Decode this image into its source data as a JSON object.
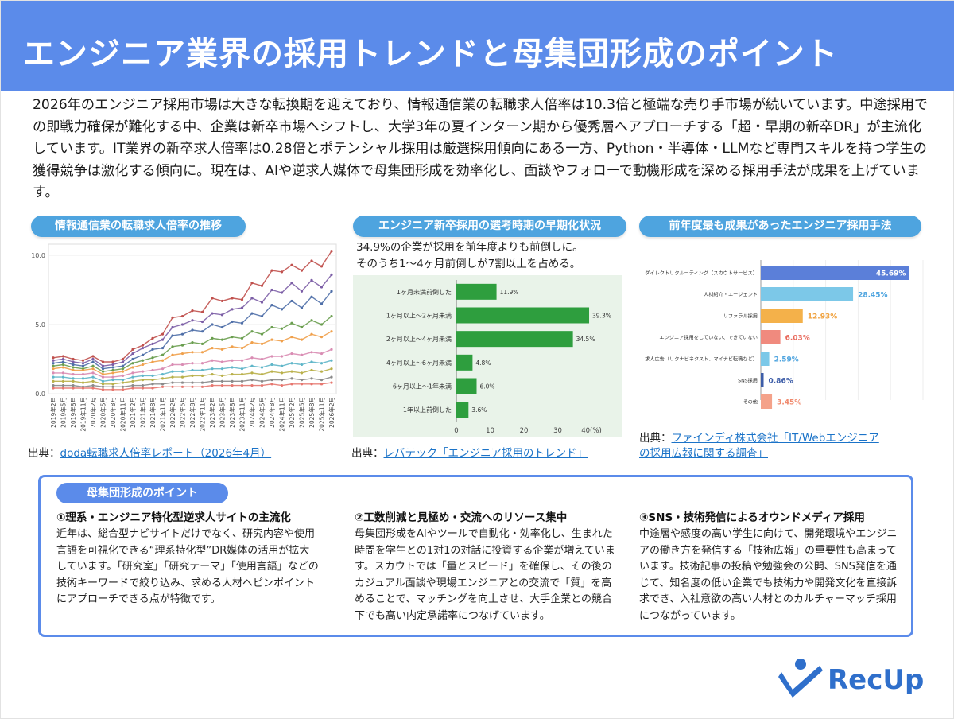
{
  "header": {
    "title": "エンジニア業界の採用トレンドと母集団形成のポイント"
  },
  "intro": "2026年のエンジニア採用市場は大きな転換期を迎えており、情報通信業の転職求人倍率は10.3倍と極端な売り手市場が続いています。中途採用での即戦力確保が難化する中、企業は新卒市場へシフトし、大学3年の夏インターン期から優秀層へアプローチする「超・早期の新卒DR」が主流化しています。IT業界の新卒求人倍率は0.28倍とポテンシャル採用は厳選採用傾向にある一方、Python・半導体・LLMなど専門スキルを持つ学生の獲得競争は激化する傾向に。現在は、AIや逆求人媒体で母集団形成を効率化し、面談やフォローで動機形成を深める採用手法が成果を上げています。",
  "charts": {
    "left": {
      "heading": "情報通信業の転職求人倍率の推移",
      "source_prefix": "出典：",
      "source_link": "doda転職求人倍率レポート（2026年4月）"
    },
    "middle": {
      "heading": "エンジニア新卒採用の選考時期の早期化状況",
      "subtext_1": "34.9%の企業が採用を前年度よりも前倒しに。",
      "subtext_2": "そのうち1〜4ヶ月前倒しが7割以上を占める。",
      "source_prefix": "出典：",
      "source_link": "レバテック「エンジニア採用のトレンド」"
    },
    "right": {
      "heading": "前年度最も成果があったエンジニア採用手法",
      "source_prefix": "出典：",
      "source_link_1": "ファインディ株式会社「IT/Webエンジニア",
      "source_link_2": "の採用広報に関する調査」"
    }
  },
  "chart_data": [
    {
      "type": "line",
      "ylim": [
        0,
        10.0
      ],
      "yticks": [
        "0.0",
        "5.0",
        "10.0"
      ],
      "x": [
        "2019年2月",
        "2019年5月",
        "2019年8月",
        "2019年11月",
        "2020年2月",
        "2020年5月",
        "2020年8月",
        "2020年11月",
        "2021年2月",
        "2021年5月",
        "2021年8月",
        "2021年11月",
        "2022年2月",
        "2022年5月",
        "2022年8月",
        "2022年11月",
        "2023年2月",
        "2023年5月",
        "2023年8月",
        "2023年11月",
        "2024年2月",
        "2024年5月",
        "2024年8月",
        "2024年11月",
        "2025年2月",
        "2025年5月",
        "2025年8月",
        "2025年11月",
        "2026年2月"
      ],
      "series": [
        {
          "color": "#c0504d",
          "values": [
            2.6,
            2.7,
            2.5,
            2.4,
            2.7,
            2.3,
            2.3,
            2.5,
            3.2,
            3.5,
            4.0,
            4.3,
            5.5,
            5.6,
            6.0,
            5.9,
            6.9,
            6.7,
            6.9,
            6.8,
            8.0,
            7.8,
            8.9,
            8.8,
            9.3,
            8.9,
            9.6,
            9.2,
            10.3
          ]
        },
        {
          "color": "#7c5ea6",
          "values": [
            2.4,
            2.5,
            2.3,
            2.2,
            2.5,
            2.0,
            2.1,
            2.3,
            2.9,
            3.3,
            3.6,
            3.9,
            4.8,
            5.0,
            5.3,
            5.2,
            5.8,
            5.7,
            6.1,
            6.2,
            6.9,
            6.6,
            7.5,
            7.3,
            8.0,
            7.4,
            8.2,
            7.7,
            8.6
          ]
        },
        {
          "color": "#4f6fa8",
          "values": [
            2.2,
            2.3,
            2.1,
            2.0,
            2.3,
            1.8,
            1.9,
            2.0,
            2.5,
            2.8,
            3.2,
            3.3,
            4.2,
            4.3,
            4.6,
            4.5,
            5.0,
            4.8,
            5.2,
            5.1,
            5.8,
            5.6,
            6.4,
            6.1,
            6.7,
            6.2,
            7.0,
            6.5,
            7.4
          ]
        },
        {
          "color": "#6a9e4f",
          "values": [
            2.0,
            2.1,
            1.9,
            1.8,
            2.0,
            1.6,
            1.7,
            1.8,
            2.2,
            2.4,
            2.6,
            2.8,
            3.4,
            3.5,
            3.7,
            3.6,
            4.0,
            3.9,
            4.1,
            4.0,
            4.5,
            4.3,
            4.8,
            4.7,
            5.1,
            4.8,
            5.3,
            5.0,
            5.6
          ]
        },
        {
          "color": "#f0a04b",
          "values": [
            1.8,
            1.9,
            1.7,
            1.7,
            1.8,
            1.4,
            1.5,
            1.6,
            1.9,
            2.1,
            2.3,
            2.4,
            2.8,
            2.9,
            3.0,
            3.0,
            3.3,
            3.2,
            3.4,
            3.3,
            3.7,
            3.6,
            3.9,
            3.8,
            4.1,
            3.9,
            4.3,
            4.1,
            4.5
          ]
        },
        {
          "color": "#d98cb3",
          "values": [
            1.5,
            1.5,
            1.4,
            1.4,
            1.5,
            1.2,
            1.2,
            1.3,
            1.5,
            1.6,
            1.7,
            1.8,
            2.1,
            2.1,
            2.2,
            2.2,
            2.4,
            2.3,
            2.4,
            2.4,
            2.6,
            2.5,
            2.7,
            2.7,
            2.9,
            2.8,
            3.0,
            2.9,
            3.2
          ]
        },
        {
          "color": "#5fb6c9",
          "values": [
            1.2,
            1.2,
            1.1,
            1.1,
            1.2,
            0.9,
            1.0,
            1.0,
            1.2,
            1.3,
            1.3,
            1.4,
            1.6,
            1.6,
            1.7,
            1.7,
            1.8,
            1.8,
            1.9,
            1.8,
            2.0,
            1.9,
            2.1,
            2.0,
            2.2,
            2.1,
            2.3,
            2.2,
            2.4
          ]
        },
        {
          "color": "#b9b04a",
          "values": [
            0.9,
            0.9,
            0.9,
            0.8,
            0.9,
            0.7,
            0.7,
            0.8,
            0.9,
            1.0,
            1.0,
            1.1,
            1.2,
            1.2,
            1.3,
            1.3,
            1.4,
            1.3,
            1.4,
            1.4,
            1.5,
            1.4,
            1.6,
            1.5,
            1.6,
            1.5,
            1.7,
            1.6,
            1.8
          ]
        },
        {
          "color": "#8a8a8a",
          "values": [
            0.6,
            0.6,
            0.6,
            0.5,
            0.6,
            0.5,
            0.5,
            0.5,
            0.6,
            0.6,
            0.7,
            0.7,
            0.8,
            0.8,
            0.8,
            0.8,
            0.9,
            0.9,
            0.9,
            0.9,
            1.0,
            0.9,
            1.0,
            1.0,
            1.1,
            1.0,
            1.1,
            1.0,
            1.2
          ]
        },
        {
          "color": "#e6776f",
          "values": [
            0.4,
            0.4,
            0.4,
            0.4,
            0.4,
            0.3,
            0.3,
            0.3,
            0.4,
            0.4,
            0.4,
            0.5,
            0.5,
            0.5,
            0.5,
            0.5,
            0.6,
            0.6,
            0.6,
            0.6,
            0.6,
            0.6,
            0.7,
            0.6,
            0.7,
            0.7,
            0.7,
            0.7,
            0.8
          ]
        }
      ]
    },
    {
      "type": "bar",
      "orientation": "horizontal",
      "categories": [
        "1ヶ月未満前倒した",
        "1ヶ月以上〜2ヶ月未満",
        "2ヶ月以上〜4ヶ月未満",
        "4ヶ月以上〜6ヶ月未満",
        "6ヶ月以上〜1年未満",
        "1年以上前倒した"
      ],
      "values": [
        11.9,
        39.3,
        34.5,
        4.8,
        6.0,
        3.6
      ],
      "value_labels": [
        "11.9%",
        "39.3%",
        "34.5%",
        "4.8%",
        "6.0%",
        "3.6%"
      ],
      "xlim": [
        0,
        40
      ],
      "xticks": [
        "0",
        "10",
        "20",
        "30",
        "40(%)"
      ],
      "bar_color": "#2e9e3e",
      "background": "#e9f3e9"
    },
    {
      "type": "bar",
      "orientation": "horizontal",
      "categories": [
        "ダイレクトリクルーティング（スカウトサービス）",
        "人材紹介・エージェント",
        "リファラル採用",
        "エンジニア採用をしていない、できていない",
        "求人広告（リクナビネクスト、マイナビ転職など）",
        "SNS採用",
        "その他"
      ],
      "values": [
        45.69,
        28.45,
        12.93,
        6.03,
        2.59,
        0.86,
        3.45
      ],
      "value_labels": [
        "45.69%",
        "28.45%",
        "12.93%",
        "6.03%",
        "2.59%",
        "0.86%",
        "3.45%"
      ],
      "xlim": [
        0,
        50
      ],
      "colors": [
        "#5b7fd9",
        "#7cc8e8",
        "#f4b14a",
        "#f08a7e",
        "#7cc8e8",
        "#3d5da8",
        "#f4a28a"
      ],
      "label_colors": [
        "#ffffff",
        "#4ea4df",
        "#f0a03b",
        "#e8685a",
        "#4ea4df",
        "#3d5da8",
        "#f08a6e"
      ]
    }
  ],
  "points": {
    "heading": "母集団形成のポイント",
    "items": [
      {
        "title": "①理系・エンジニア特化型逆求人サイトの主流化",
        "body": "近年は、総合型ナビサイトだけでなく、研究内容や使用言語を可視化できる“理系特化型”DR媒体の活用が拡大しています。「研究室」「研究テーマ」「使用言語」などの技術キーワードで絞り込み、求める人材へピンポイントにアプローチできる点が特徴です。"
      },
      {
        "title": "②工数削減と見極め・交流へのリソース集中",
        "body": "母集団形成をAIやツールで自動化・効率化し、生まれた時間を学生との1対1の対話に投資する企業が増えています。スカウトでは「量とスピード」を確保し、その後のカジュアル面談や現場エンジニアとの交流で「質」を高めることで、マッチングを向上させ、大手企業との競合下でも高い内定承諾率につなげています。"
      },
      {
        "title": "③SNS・技術発信によるオウンドメディア採用",
        "body": "中途層や感度の高い学生に向けて、開発環境やエンジニアの働き方を発信する「技術広報」の重要性も高まっています。技術記事の投稿や勉強会の公開、SNS発信を通じて、知名度の低い企業でも技術力や開発文化を直接訴求でき、入社意欲の高い人材とのカルチャーマッチ採用につながっています。"
      }
    ]
  },
  "logo": {
    "text": "RecUp",
    "color": "#2f6fcb"
  }
}
